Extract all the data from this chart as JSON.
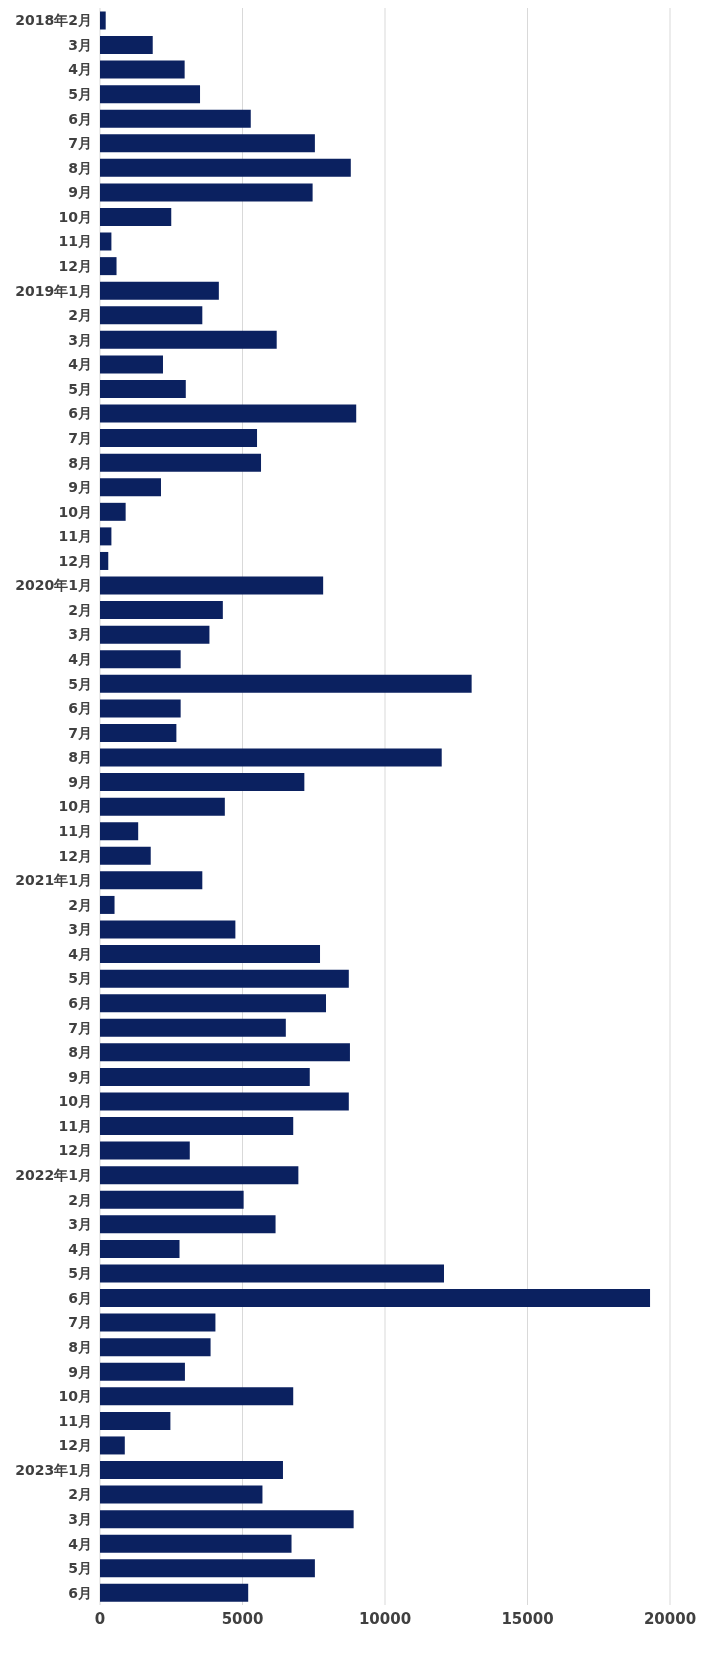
{
  "chart_data": {
    "type": "bar",
    "orientation": "horizontal",
    "categories": [
      "2018年2月",
      "3月",
      "4月",
      "5月",
      "6月",
      "7月",
      "8月",
      "9月",
      "10月",
      "11月",
      "12月",
      "2019年1月",
      "2月",
      "3月",
      "4月",
      "5月",
      "6月",
      "7月",
      "8月",
      "9月",
      "10月",
      "11月",
      "12月",
      "2020年1月",
      "2月",
      "3月",
      "4月",
      "5月",
      "6月",
      "7月",
      "8月",
      "9月",
      "10月",
      "11月",
      "12月",
      "2021年1月",
      "2月",
      "3月",
      "4月",
      "5月",
      "6月",
      "7月",
      "8月",
      "9月",
      "10月",
      "11月",
      "12月",
      "2022年1月",
      "2月",
      "3月",
      "4月",
      "5月",
      "6月",
      "7月",
      "8月",
      "9月",
      "10月",
      "11月",
      "12月",
      "2023年1月",
      "2月",
      "3月",
      "4月",
      "5月",
      "6月"
    ],
    "values": [
      200,
      1850,
      2970,
      3510,
      5290,
      7540,
      8800,
      7460,
      2500,
      400,
      580,
      4170,
      3590,
      6200,
      2210,
      3010,
      8990,
      5510,
      5650,
      2140,
      900,
      400,
      290,
      7830,
      4310,
      3840,
      2830,
      13040,
      2830,
      2680,
      11990,
      7170,
      4380,
      1340,
      1780,
      3590,
      510,
      4750,
      7720,
      8730,
      7930,
      6520,
      8770,
      7360,
      8730,
      6780,
      3150,
      6960,
      5040,
      6160,
      2790,
      12070,
      19300,
      4050,
      3880,
      2980,
      6780,
      2470,
      870,
      6420,
      5700,
      8900,
      6720,
      7540,
      5200
    ],
    "color": "#0b2160",
    "xlim": [
      0,
      20000
    ],
    "xticks": [
      0,
      5000,
      10000,
      15000,
      20000
    ],
    "grid": "x"
  }
}
